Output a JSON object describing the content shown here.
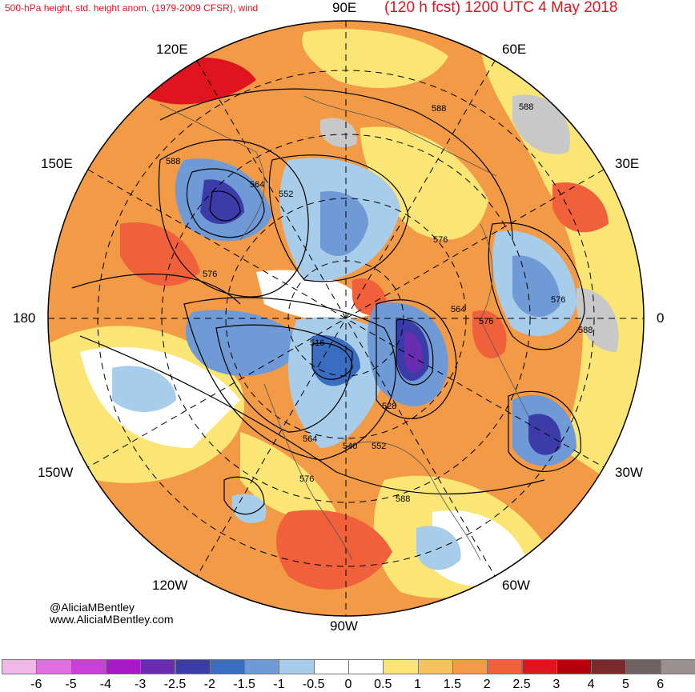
{
  "header": {
    "left_text": "500-hPa height, std. height anom. (1979-2009 CFSR), wind",
    "right_text": "(120 h fcst) 1200 UTC 4 May 2018"
  },
  "longitude_labels": {
    "e90": "90E",
    "e60": "60E",
    "e30": "30E",
    "zero": "0",
    "w30": "30W",
    "w60": "60W",
    "w90": "90W",
    "w120": "120W",
    "w150": "150W",
    "dateline": "180",
    "e150": "150E",
    "e120": "120E"
  },
  "contour_labels": [
    "588",
    "588",
    "588",
    "564",
    "552",
    "576",
    "576",
    "576",
    "564",
    "576",
    "588",
    "516",
    "528",
    "540",
    "552",
    "564",
    "576",
    "588"
  ],
  "credits": {
    "handle": "@AliciaMBentley",
    "site": "www.AliciaMBentley.com"
  },
  "colorbar": {
    "ticks": [
      "-6",
      "-5",
      "-4",
      "-3",
      "-2.5",
      "-2",
      "-1.5",
      "-1",
      "-0.5",
      "0",
      "0.5",
      "1",
      "1.5",
      "2",
      "2.5",
      "3",
      "4",
      "5",
      "6"
    ],
    "colors": [
      "#f0b8e8",
      "#e070e0",
      "#c840d8",
      "#a818c8",
      "#6a2cb0",
      "#3c3ca8",
      "#3a6cc0",
      "#6f9ad6",
      "#a8cdea",
      "#ffffff",
      "#ffffff",
      "#fbe675",
      "#f4c35e",
      "#f29a46",
      "#f0603a",
      "#e0141e",
      "#b4000a",
      "#7a2a2a",
      "#6e6262",
      "#9a9090"
    ]
  }
}
